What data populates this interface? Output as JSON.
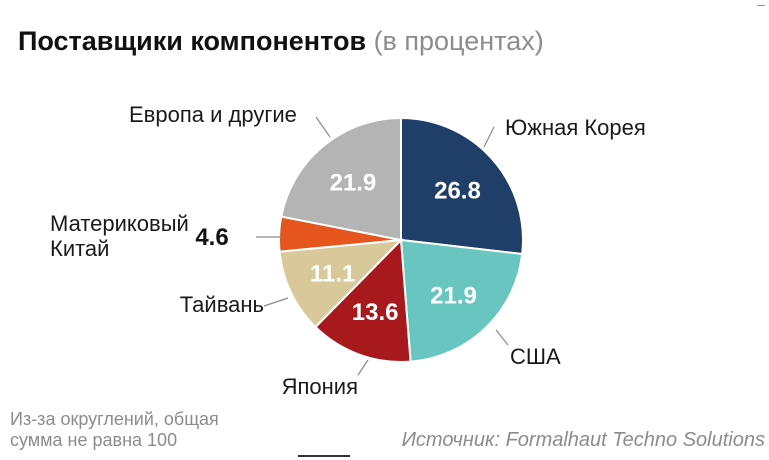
{
  "title": {
    "main": "Поставщики компонентов",
    "sub": "(в процентах)"
  },
  "chart_data": {
    "type": "pie",
    "title": "Поставщики компонентов (в процентах)",
    "slices": [
      {
        "label": "Южная Корея",
        "value": 26.8,
        "value_label": "26.8",
        "color": "#1f3f68",
        "text_color": "#ffffff"
      },
      {
        "label": "США",
        "value": 21.9,
        "value_label": "21.9",
        "color": "#68c5c0",
        "text_color": "#ffffff"
      },
      {
        "label": "Япония",
        "value": 13.6,
        "value_label": "13.6",
        "color": "#a8191d",
        "text_color": "#ffffff"
      },
      {
        "label": "Тайвань",
        "value": 11.1,
        "value_label": "11.1",
        "color": "#d8c89a",
        "text_color": "#ffffff"
      },
      {
        "label": "Материковый Китай",
        "label_lines": [
          "Материковый",
          "Китай"
        ],
        "value": 4.6,
        "value_label": "4.6",
        "color": "#e4561d",
        "text_color": "#111111"
      },
      {
        "label": "Европа и другие",
        "value": 21.9,
        "value_label": "21.9",
        "color": "#b4b4b4",
        "text_color": "#ffffff"
      }
    ]
  },
  "footnote": {
    "line1": "Из-за округлений, общая",
    "line2": "сумма не равна 100"
  },
  "source": "Источник: Formalhaut Techno Solutions",
  "corner_mark": "–"
}
